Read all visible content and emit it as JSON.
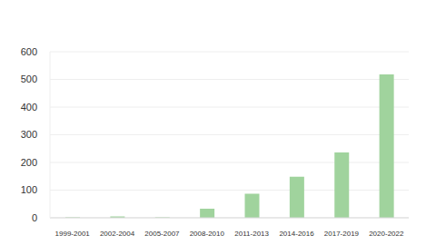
{
  "chart_data": {
    "type": "bar",
    "categories": [
      "1999-2001",
      "2002-2004",
      "2005-2007",
      "2008-2010",
      "2011-2013",
      "2014-2016",
      "2017-2019",
      "2020-2022"
    ],
    "values": [
      2,
      5,
      2,
      33,
      87,
      148,
      236,
      518
    ],
    "color": "#a0d39d",
    "ylim": [
      0,
      600
    ],
    "yticks": [
      0,
      100,
      200,
      300,
      400,
      500,
      600
    ],
    "grid": true
  }
}
